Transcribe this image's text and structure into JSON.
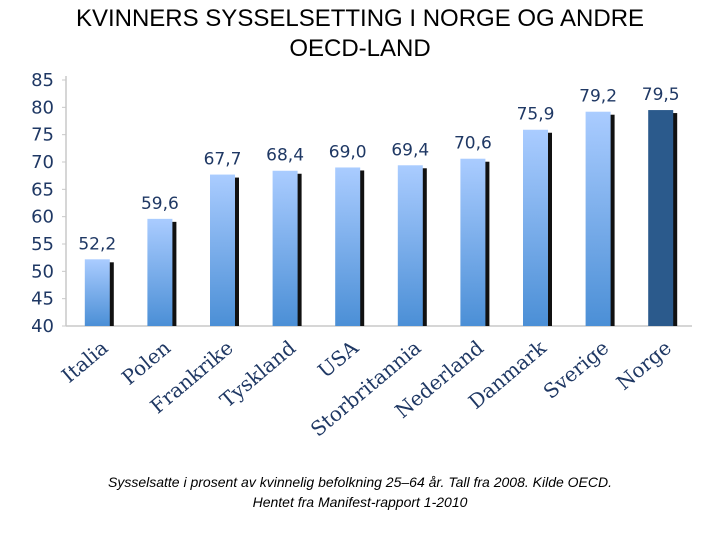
{
  "title_line1": "KVINNERS SYSSELSETTING I NORGE OG ANDRE",
  "title_line2": "OECD-LAND",
  "caption_line1": "Sysselsatte i prosent av kvinnelig befolkning 25–64 år. Tall fra 2008. Kilde OECD.",
  "caption_line2": "Hentet fra Manifest-rapport 1-2010",
  "colors": {
    "bar_top": "#aaccff",
    "bar_bottom": "#4b8fd6",
    "highlight": "#2b5a8c",
    "shadow": "#111111",
    "axis": "#c8c8c8",
    "text": "#1f3864"
  },
  "chart_data": {
    "type": "bar",
    "categories": [
      "Italia",
      "Polen",
      "Frankrike",
      "Tyskland",
      "USA",
      "Storbritannia",
      "Nederland",
      "Danmark",
      "Sverige",
      "Norge"
    ],
    "values": [
      52.2,
      59.6,
      67.7,
      68.4,
      69.0,
      69.4,
      70.6,
      75.9,
      79.2,
      79.5
    ],
    "value_labels": [
      "52,2",
      "59,6",
      "67,7",
      "68,4",
      "69,0",
      "69,4",
      "70,6",
      "75,9",
      "79,2",
      "79,5"
    ],
    "highlight_category": "Norge",
    "ylim": [
      40,
      85
    ],
    "yticks": [
      40,
      45,
      50,
      55,
      60,
      65,
      70,
      75,
      80,
      85
    ],
    "grid": false,
    "xlabel": "",
    "ylabel": ""
  }
}
